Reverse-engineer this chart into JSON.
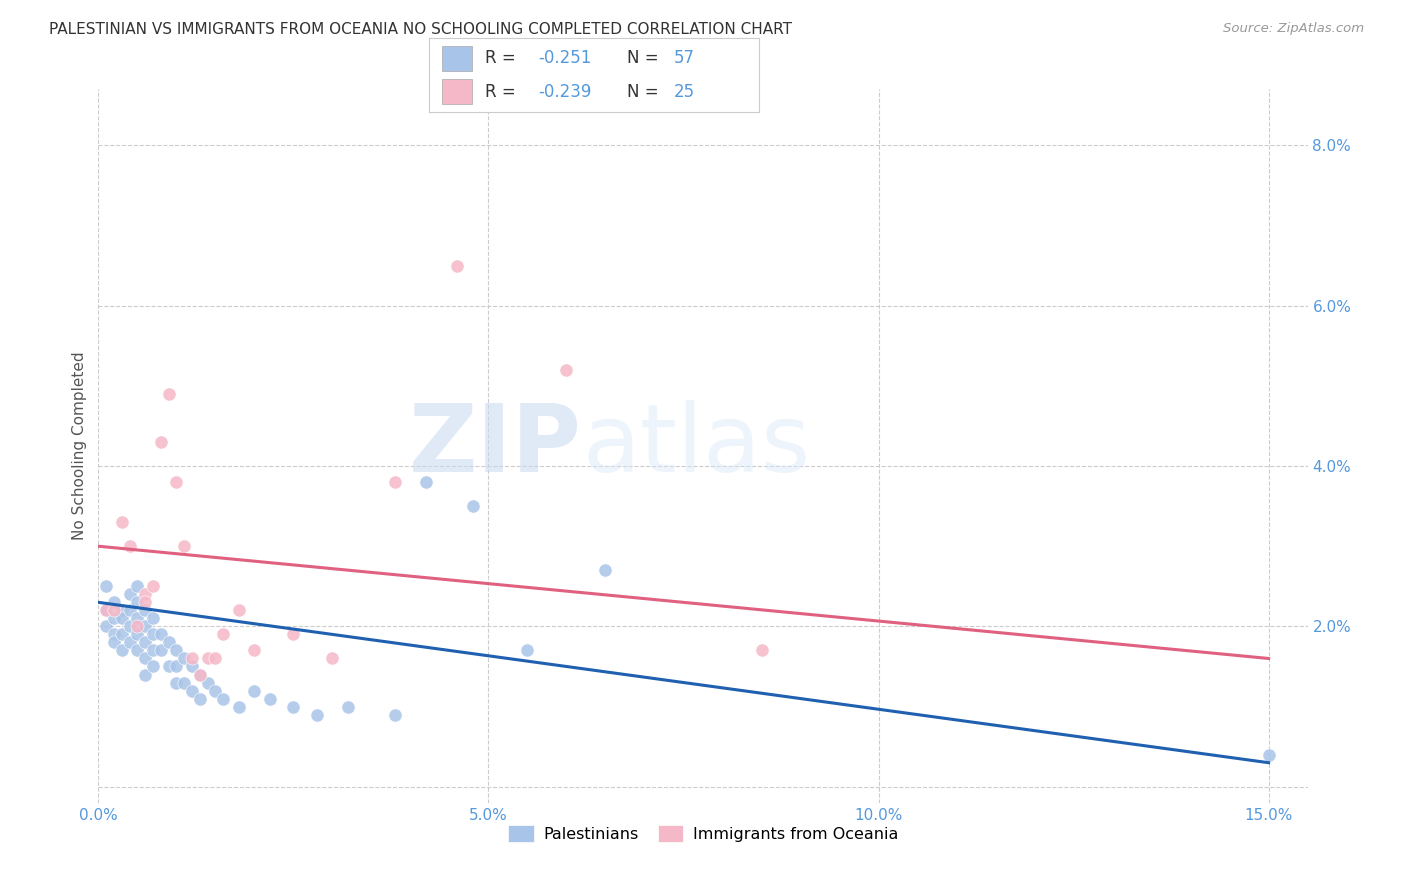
{
  "title": "PALESTINIAN VS IMMIGRANTS FROM OCEANIA NO SCHOOLING COMPLETED CORRELATION CHART",
  "source": "Source: ZipAtlas.com",
  "ylabel": "No Schooling Completed",
  "xlim": [
    0.0,
    0.155
  ],
  "ylim": [
    -0.002,
    0.087
  ],
  "xticks": [
    0.0,
    0.05,
    0.1,
    0.15
  ],
  "xticklabels": [
    "0.0%",
    "5.0%",
    "10.0%",
    "15.0%"
  ],
  "yticks": [
    0.0,
    0.02,
    0.04,
    0.06,
    0.08
  ],
  "yticklabels": [
    "",
    "2.0%",
    "4.0%",
    "6.0%",
    "8.0%"
  ],
  "legend_labels": [
    "Palestinians",
    "Immigrants from Oceania"
  ],
  "legend_R": [
    -0.251,
    -0.239
  ],
  "legend_N": [
    57,
    25
  ],
  "blue_color": "#a8c4e8",
  "pink_color": "#f5b8c8",
  "blue_line_color": "#2060b0",
  "pink_line_color": "#e06080",
  "watermark_zip": "ZIP",
  "watermark_atlas": "atlas",
  "background_color": "#ffffff",
  "grid_color": "#cccccc",
  "blue_scatter_x": [
    0.001,
    0.001,
    0.001,
    0.002,
    0.002,
    0.002,
    0.002,
    0.003,
    0.003,
    0.003,
    0.003,
    0.004,
    0.004,
    0.004,
    0.004,
    0.005,
    0.005,
    0.005,
    0.005,
    0.005,
    0.006,
    0.006,
    0.006,
    0.006,
    0.006,
    0.007,
    0.007,
    0.007,
    0.007,
    0.008,
    0.008,
    0.009,
    0.009,
    0.01,
    0.01,
    0.01,
    0.011,
    0.011,
    0.012,
    0.012,
    0.013,
    0.013,
    0.014,
    0.015,
    0.016,
    0.018,
    0.02,
    0.022,
    0.025,
    0.028,
    0.032,
    0.038,
    0.042,
    0.048,
    0.055,
    0.065,
    0.15
  ],
  "blue_scatter_y": [
    0.025,
    0.022,
    0.02,
    0.023,
    0.021,
    0.019,
    0.018,
    0.022,
    0.021,
    0.019,
    0.017,
    0.024,
    0.022,
    0.02,
    0.018,
    0.025,
    0.023,
    0.021,
    0.019,
    0.017,
    0.022,
    0.02,
    0.018,
    0.016,
    0.014,
    0.021,
    0.019,
    0.017,
    0.015,
    0.019,
    0.017,
    0.018,
    0.015,
    0.017,
    0.015,
    0.013,
    0.016,
    0.013,
    0.015,
    0.012,
    0.014,
    0.011,
    0.013,
    0.012,
    0.011,
    0.01,
    0.012,
    0.011,
    0.01,
    0.009,
    0.01,
    0.009,
    0.038,
    0.035,
    0.017,
    0.027,
    0.004
  ],
  "pink_scatter_x": [
    0.001,
    0.002,
    0.003,
    0.004,
    0.005,
    0.006,
    0.006,
    0.007,
    0.008,
    0.009,
    0.01,
    0.011,
    0.012,
    0.013,
    0.014,
    0.015,
    0.016,
    0.018,
    0.02,
    0.025,
    0.03,
    0.038,
    0.046,
    0.06,
    0.085
  ],
  "pink_scatter_y": [
    0.022,
    0.022,
    0.033,
    0.03,
    0.02,
    0.024,
    0.023,
    0.025,
    0.043,
    0.049,
    0.038,
    0.03,
    0.016,
    0.014,
    0.016,
    0.016,
    0.019,
    0.022,
    0.017,
    0.019,
    0.016,
    0.038,
    0.065,
    0.052,
    0.017
  ],
  "blue_line_y_start": 0.023,
  "blue_line_y_end": 0.003,
  "pink_line_y_start": 0.03,
  "pink_line_y_end": 0.016
}
